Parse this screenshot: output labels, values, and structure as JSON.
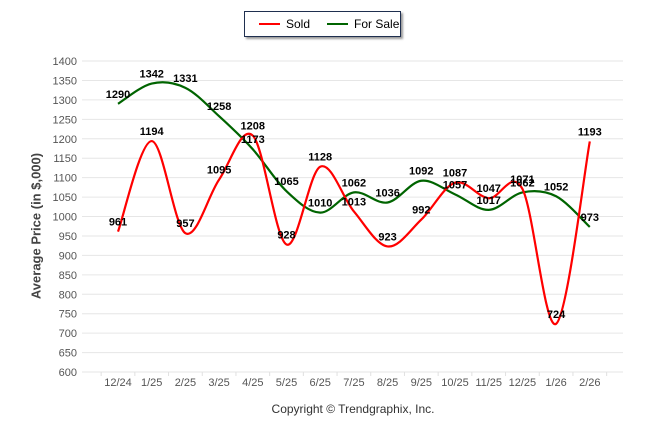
{
  "chart_data": {
    "type": "line",
    "title": "",
    "xlabel": "",
    "ylabel": "Average Price (in $,000)",
    "ylim": [
      600,
      1400
    ],
    "yticks": [
      600,
      650,
      700,
      750,
      800,
      850,
      900,
      950,
      1000,
      1050,
      1100,
      1150,
      1200,
      1250,
      1300,
      1350,
      1400
    ],
    "grid": true,
    "legend_position": "top-center",
    "categories": [
      "12/24",
      "1/25",
      "2/25",
      "3/25",
      "4/25",
      "5/25",
      "6/25",
      "7/25",
      "8/25",
      "9/25",
      "10/25",
      "11/25",
      "12/25",
      "1/26",
      "2/26"
    ],
    "series": [
      {
        "name": "Sold",
        "color": "#ff0000",
        "values": [
          961,
          1194,
          957,
          1095,
          1208,
          928,
          1128,
          1013,
          923,
          992,
          1087,
          1047,
          1071,
          724,
          1193
        ]
      },
      {
        "name": "For Sale",
        "color": "#006400",
        "values": [
          1290,
          1342,
          1331,
          1258,
          1173,
          1065,
          1010,
          1062,
          1036,
          1092,
          1057,
          1017,
          1062,
          1052,
          973
        ]
      }
    ]
  },
  "legend": {
    "sold": "Sold",
    "for_sale": "For Sale"
  },
  "footer": {
    "copyright": "Copyright © Trendgraphix, Inc."
  }
}
